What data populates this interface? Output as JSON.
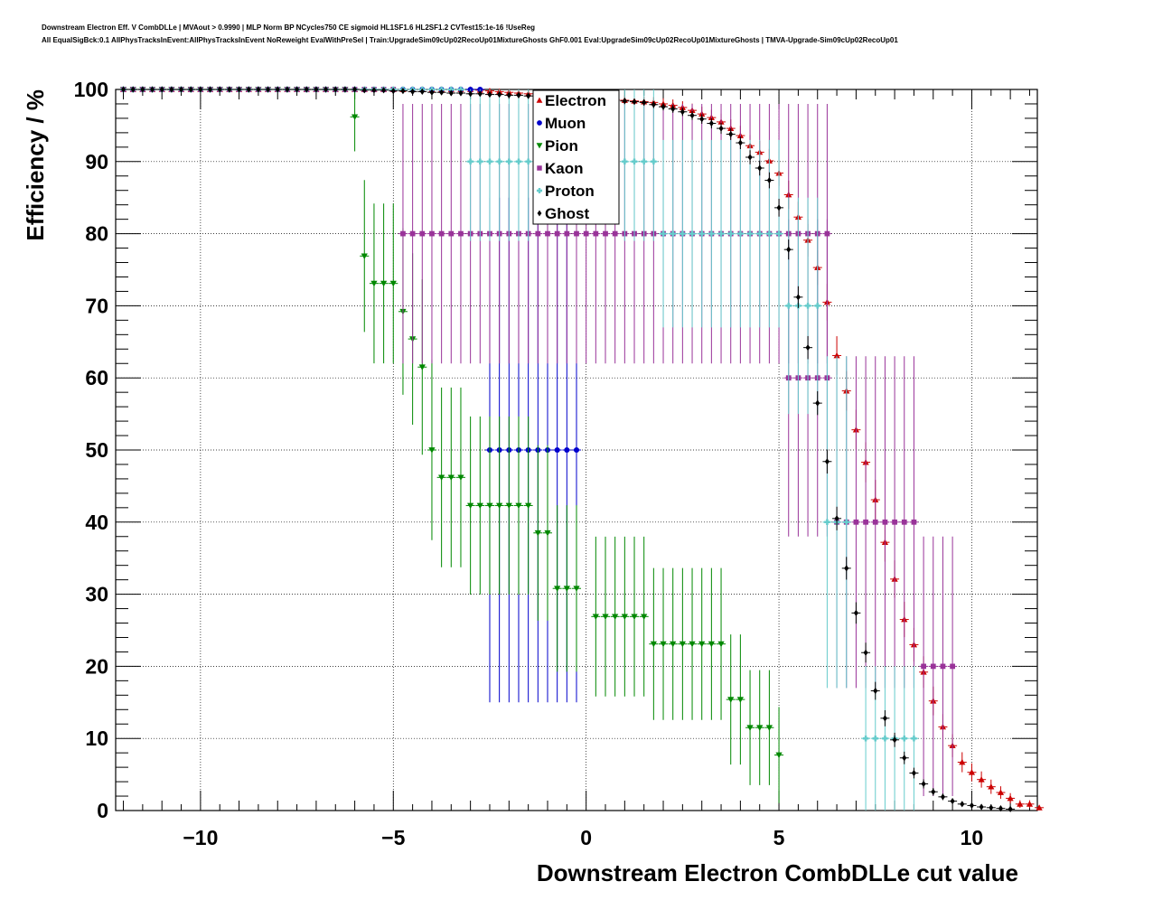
{
  "title_line_1": "Downstream Electron Eff. V CombDLLe | MVAout > 0.9990 | MLP Norm BP NCycles750 CE sigmoid HL1SF1.6 HL2SF1.2 CVTest15:1e-16 !UseReg",
  "title_line_2": "All EqualSigBck:0.1 AllPhysTracksInEvent:AllPhysTracksInEvent NoReweight EvalWithPreSel | Train:UpgradeSim09cUp02RecoUp01MixtureGhosts GhF0.001 Eval:UpgradeSim09cUp02RecoUp01MixtureGhosts | TMVA-Upgrade-Sim09cUp02RecoUp01",
  "chart_data": {
    "type": "scatter",
    "xlabel": "Downstream Electron CombDLLe cut value",
    "ylabel": "Efficiency / %",
    "xlim": [
      -12.2,
      11.7
    ],
    "ylim": [
      0,
      100
    ],
    "xticks": [
      -10,
      -5,
      0,
      5,
      10
    ],
    "xtick_labels": [
      "−10",
      "−5",
      "0",
      "5",
      "10"
    ],
    "yticks": [
      0,
      10,
      20,
      30,
      40,
      50,
      60,
      70,
      80,
      90,
      100
    ],
    "yticks_labels": [
      "0",
      "10",
      "20",
      "30",
      "40",
      "50",
      "60",
      "70",
      "80",
      "90",
      "100"
    ],
    "grid": true,
    "legend_position": "top-center",
    "series": [
      {
        "name": "Electron",
        "color": "#cc0000",
        "marker": "triangle-up",
        "points": [
          [
            -12,
            100
          ],
          [
            -11.75,
            100
          ],
          [
            -11.5,
            100
          ],
          [
            -11.25,
            100
          ],
          [
            -11,
            100
          ],
          [
            -10.75,
            100
          ],
          [
            -10.5,
            100
          ],
          [
            -10.25,
            100
          ],
          [
            -10,
            100
          ],
          [
            -9.75,
            100
          ],
          [
            -9.5,
            100
          ],
          [
            -9.25,
            100
          ],
          [
            -9,
            100
          ],
          [
            -8.75,
            100
          ],
          [
            -8.5,
            100
          ],
          [
            -8.25,
            100
          ],
          [
            -8,
            100
          ],
          [
            -7.75,
            100
          ],
          [
            -7.5,
            100
          ],
          [
            -7.25,
            100
          ],
          [
            -7,
            100
          ],
          [
            -6.75,
            100
          ],
          [
            -6.5,
            100
          ],
          [
            -6.25,
            100
          ],
          [
            -6,
            100
          ],
          [
            -5.75,
            100
          ],
          [
            -5.5,
            100
          ],
          [
            -5.25,
            100
          ],
          [
            -5,
            100
          ],
          [
            -4.75,
            100
          ],
          [
            -4.5,
            100
          ],
          [
            -4.25,
            100
          ],
          [
            -4,
            100
          ],
          [
            -3.75,
            100
          ],
          [
            -3.5,
            100
          ],
          [
            -3.25,
            100
          ],
          [
            -3,
            100
          ],
          [
            -2.75,
            99.9
          ],
          [
            -2.5,
            99.8
          ],
          [
            -2.25,
            99.7
          ],
          [
            -2,
            99.6
          ],
          [
            -1.75,
            99.5
          ],
          [
            -1.5,
            99.4
          ],
          [
            -1.25,
            99.3
          ],
          [
            -1,
            99.2
          ],
          [
            -0.75,
            99.1
          ],
          [
            -0.5,
            99.0
          ],
          [
            -0.25,
            98.9
          ],
          [
            0,
            98.8
          ],
          [
            0.25,
            98.7
          ],
          [
            0.5,
            98.6
          ],
          [
            0.75,
            98.6
          ],
          [
            1,
            98.5
          ],
          [
            1.25,
            98.4
          ],
          [
            1.5,
            98.3
          ],
          [
            1.75,
            98.2
          ],
          [
            2,
            98.0
          ],
          [
            2.25,
            97.8
          ],
          [
            2.5,
            97.5
          ],
          [
            2.75,
            97.1
          ],
          [
            3,
            96.6
          ],
          [
            3.25,
            96.1
          ],
          [
            3.5,
            95.5
          ],
          [
            3.75,
            94.6
          ],
          [
            4,
            93.6
          ],
          [
            4.25,
            92.2
          ],
          [
            4.5,
            91.3
          ],
          [
            4.75,
            90.1
          ],
          [
            5,
            88.4
          ],
          [
            5.25,
            85.4
          ],
          [
            5.5,
            82.3
          ],
          [
            5.75,
            79.1
          ],
          [
            6,
            75.3
          ],
          [
            6.25,
            70.5
          ],
          [
            6.5,
            63.1
          ],
          [
            6.75,
            58.2
          ],
          [
            7,
            52.8
          ],
          [
            7.25,
            48.3
          ],
          [
            7.5,
            43.1
          ],
          [
            7.75,
            37.2
          ],
          [
            8,
            32.1
          ],
          [
            8.25,
            26.5
          ],
          [
            8.5,
            23.0
          ],
          [
            8.75,
            19.2
          ],
          [
            9,
            15.2
          ],
          [
            9.25,
            11.6
          ],
          [
            9.5,
            9.0
          ],
          [
            9.75,
            6.7
          ],
          [
            10,
            5.3
          ],
          [
            10.25,
            4.3
          ],
          [
            10.5,
            3.3
          ],
          [
            10.75,
            2.5
          ],
          [
            11,
            1.7
          ],
          [
            11.25,
            0.9
          ],
          [
            11.5,
            0.9
          ],
          [
            11.75,
            0.4
          ]
        ]
      },
      {
        "name": "Muon",
        "color": "#0000cc",
        "marker": "circle",
        "segments": [
          {
            "x_from": -12,
            "x_to": -2.75,
            "y": 100,
            "err": 0
          },
          {
            "x_from": -2.5,
            "x_to": -0.25,
            "y": 50,
            "err": 35
          }
        ]
      },
      {
        "name": "Pion",
        "color": "#008800",
        "marker": "triangle-down",
        "points": [
          [
            -12,
            100
          ],
          [
            -11.75,
            100
          ],
          [
            -11.5,
            100
          ],
          [
            -11.25,
            100
          ],
          [
            -11,
            100
          ],
          [
            -10.75,
            100
          ],
          [
            -10.5,
            100
          ],
          [
            -10.25,
            100
          ],
          [
            -10,
            100
          ],
          [
            -9.75,
            100
          ],
          [
            -9.5,
            100
          ],
          [
            -9.25,
            100
          ],
          [
            -9,
            100
          ],
          [
            -8.75,
            100
          ],
          [
            -8.5,
            100
          ],
          [
            -8.25,
            100
          ],
          [
            -8,
            100
          ],
          [
            -7.75,
            100
          ],
          [
            -7.5,
            100
          ],
          [
            -7.25,
            100
          ],
          [
            -7,
            100
          ],
          [
            -6.75,
            100
          ],
          [
            -6.5,
            100
          ],
          [
            -6.25,
            100
          ],
          [
            -6,
            96.2
          ],
          [
            -5.75,
            76.9
          ],
          [
            -5.5,
            73.1
          ],
          [
            -5.25,
            73.1
          ],
          [
            -5,
            73.1
          ],
          [
            -4.75,
            69.2
          ],
          [
            -4.5,
            65.4
          ],
          [
            -4.25,
            61.5
          ],
          [
            -4,
            50
          ],
          [
            -3.75,
            46.2
          ],
          [
            -3.5,
            46.2
          ],
          [
            -3.25,
            46.2
          ],
          [
            -3,
            42.3
          ],
          [
            -2.75,
            42.3
          ],
          [
            -2.5,
            42.3
          ],
          [
            -2.25,
            42.3
          ],
          [
            -2,
            42.3
          ],
          [
            -1.75,
            42.3
          ],
          [
            -1.5,
            42.3
          ],
          [
            -1.25,
            38.5
          ],
          [
            -1,
            38.5
          ],
          [
            -0.75,
            30.8
          ],
          [
            -0.5,
            30.8
          ],
          [
            -0.25,
            30.8
          ],
          [
            0.25,
            26.9
          ],
          [
            0.5,
            26.9
          ],
          [
            0.75,
            26.9
          ],
          [
            1,
            26.9
          ],
          [
            1.25,
            26.9
          ],
          [
            1.5,
            26.9
          ],
          [
            1.75,
            23.1
          ],
          [
            2,
            23.1
          ],
          [
            2.25,
            23.1
          ],
          [
            2.5,
            23.1
          ],
          [
            2.75,
            23.1
          ],
          [
            3,
            23.1
          ],
          [
            3.25,
            23.1
          ],
          [
            3.5,
            23.1
          ],
          [
            3.75,
            15.4
          ],
          [
            4,
            15.4
          ],
          [
            4.25,
            11.5
          ],
          [
            4.5,
            11.5
          ],
          [
            4.75,
            11.5
          ],
          [
            5,
            7.7
          ]
        ]
      },
      {
        "name": "Kaon",
        "color": "#993399",
        "marker": "square",
        "segments": [
          {
            "x_from": -12,
            "x_to": -5.0,
            "y": 100,
            "err": 0
          },
          {
            "x_from": -4.75,
            "x_to": 6.25,
            "y": 80,
            "err": 18
          },
          {
            "x_from": 5.25,
            "x_to": 6.25,
            "y": 60,
            "err": 22
          },
          {
            "x_from": 6.5,
            "x_to": 8.5,
            "y": 40,
            "err": 23
          },
          {
            "x_from": 8.75,
            "x_to": 9.5,
            "y": 20,
            "err": 18
          }
        ]
      },
      {
        "name": "Proton",
        "color": "#66cccc",
        "marker": "cross",
        "segments": [
          {
            "x_from": -12,
            "x_to": -3.25,
            "y": 100,
            "err": 0
          },
          {
            "x_from": -3.0,
            "x_to": -1.5,
            "y": 90,
            "err": 11
          },
          {
            "x_from": 1.0,
            "x_to": 1.75,
            "y": 90,
            "err": 11
          },
          {
            "x_from": 2.0,
            "x_to": 5.0,
            "y": 80,
            "err": 13
          },
          {
            "x_from": 5.25,
            "x_to": 6.0,
            "y": 70,
            "err": 15
          },
          {
            "x_from": 6.25,
            "x_to": 6.75,
            "y": 40,
            "err": 23
          },
          {
            "x_from": 7.25,
            "x_to": 8.5,
            "y": 10,
            "err": 10
          }
        ]
      },
      {
        "name": "Ghost",
        "color": "#000000",
        "marker": "diamond",
        "points": [
          [
            -12,
            100
          ],
          [
            -11.75,
            100
          ],
          [
            -11.5,
            100
          ],
          [
            -11.25,
            100
          ],
          [
            -11,
            100
          ],
          [
            -10.75,
            100
          ],
          [
            -10.5,
            100
          ],
          [
            -10.25,
            100
          ],
          [
            -10,
            100
          ],
          [
            -9.75,
            100
          ],
          [
            -9.5,
            100
          ],
          [
            -9.25,
            100
          ],
          [
            -9,
            100
          ],
          [
            -8.75,
            100
          ],
          [
            -8.5,
            100
          ],
          [
            -8.25,
            100
          ],
          [
            -8,
            100
          ],
          [
            -7.75,
            100
          ],
          [
            -7.5,
            100
          ],
          [
            -7.25,
            100
          ],
          [
            -7,
            100
          ],
          [
            -6.75,
            100
          ],
          [
            -6.5,
            100
          ],
          [
            -6.25,
            100
          ],
          [
            -6,
            100
          ],
          [
            -5.75,
            99.9
          ],
          [
            -5.5,
            99.9
          ],
          [
            -5.25,
            99.9
          ],
          [
            -5,
            99.8
          ],
          [
            -4.75,
            99.8
          ],
          [
            -4.5,
            99.7
          ],
          [
            -4.25,
            99.7
          ],
          [
            -4,
            99.6
          ],
          [
            -3.75,
            99.6
          ],
          [
            -3.5,
            99.5
          ],
          [
            -3.25,
            99.5
          ],
          [
            -3,
            99.4
          ],
          [
            -2.75,
            99.4
          ],
          [
            -2.5,
            99.3
          ],
          [
            -2.25,
            99.3
          ],
          [
            -2,
            99.2
          ],
          [
            -1.75,
            99.2
          ],
          [
            -1.5,
            99.1
          ],
          [
            -1.25,
            99.1
          ],
          [
            -1,
            99.0
          ],
          [
            -0.75,
            99.0
          ],
          [
            -0.5,
            98.9
          ],
          [
            -0.25,
            98.9
          ],
          [
            0,
            98.8
          ],
          [
            0.25,
            98.7
          ],
          [
            0.5,
            98.6
          ],
          [
            0.75,
            98.5
          ],
          [
            1,
            98.4
          ],
          [
            1.25,
            98.3
          ],
          [
            1.5,
            98.2
          ],
          [
            1.75,
            97.9
          ],
          [
            2,
            97.6
          ],
          [
            2.25,
            97.3
          ],
          [
            2.5,
            96.9
          ],
          [
            2.75,
            96.4
          ],
          [
            3,
            95.9
          ],
          [
            3.25,
            95.3
          ],
          [
            3.5,
            94.6
          ],
          [
            3.75,
            93.8
          ],
          [
            4,
            92.6
          ],
          [
            4.25,
            90.6
          ],
          [
            4.5,
            89.1
          ],
          [
            4.75,
            87.4
          ],
          [
            5,
            83.6
          ],
          [
            5.25,
            77.8
          ],
          [
            5.5,
            71.2
          ],
          [
            5.75,
            64.2
          ],
          [
            6,
            56.5
          ],
          [
            6.25,
            48.4
          ],
          [
            6.5,
            40.5
          ],
          [
            6.75,
            33.6
          ],
          [
            7,
            27.4
          ],
          [
            7.25,
            21.9
          ],
          [
            7.5,
            16.6
          ],
          [
            7.75,
            12.8
          ],
          [
            8,
            9.8
          ],
          [
            8.25,
            7.3
          ],
          [
            8.5,
            5.2
          ],
          [
            8.75,
            3.7
          ],
          [
            9,
            2.6
          ],
          [
            9.25,
            1.9
          ],
          [
            9.5,
            1.3
          ],
          [
            9.75,
            0.9
          ],
          [
            10,
            0.7
          ],
          [
            10.25,
            0.5
          ],
          [
            10.5,
            0.4
          ],
          [
            10.75,
            0.3
          ],
          [
            11,
            0.2
          ]
        ]
      }
    ]
  }
}
